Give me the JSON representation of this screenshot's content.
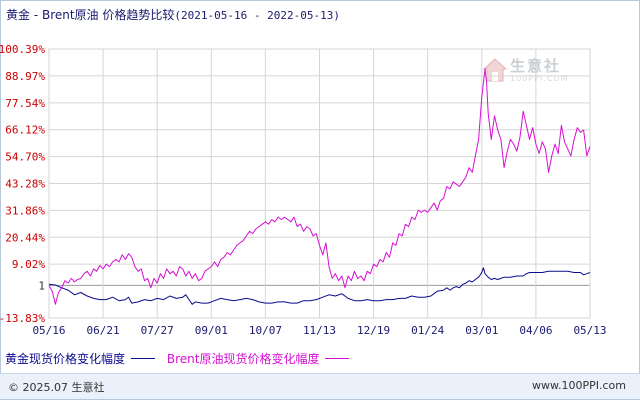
{
  "title": {
    "main": "黄金 - Brent原油 价格趋势比较",
    "range": "(2021-05-16 - 2022-05-13)"
  },
  "watermark": {
    "brand": "生意社",
    "url": "100PPI.COM"
  },
  "footer": {
    "copyright": "© 2025.07 生意社",
    "site": "www.100PPI.com"
  },
  "colors": {
    "gold": "#0b0b8f",
    "brent": "#d70fd3",
    "grid": "#d6d6d6",
    "axis_label": "#cc0000"
  },
  "chart_data": {
    "type": "line",
    "title": "黄金 - Brent原油 价格趋势比较",
    "ytick_labels": [
      "100.39%",
      "88.97%",
      "77.54%",
      "66.12%",
      "54.70%",
      "43.28%",
      "31.86%",
      "20.44%",
      "9.02%",
      "1",
      "-13.83%"
    ],
    "ytick_values": [
      100.39,
      88.97,
      77.54,
      66.12,
      54.7,
      43.28,
      31.86,
      20.44,
      9.02,
      0,
      -13.83
    ],
    "ylim": [
      -13.83,
      100.39
    ],
    "xtick_labels": [
      "05/16",
      "06/21",
      "07/27",
      "09/01",
      "10/07",
      "11/13",
      "12/19",
      "01/24",
      "03/01",
      "04/06",
      "05/13"
    ],
    "grid": true,
    "legend_position": "bottom",
    "series": [
      {
        "name": "黄金现货价格变化幅度",
        "color": "#0b0b8f",
        "points": [
          [
            0,
            0.5
          ],
          [
            4,
            0.2
          ],
          [
            8,
            -1
          ],
          [
            12,
            -2
          ],
          [
            16,
            -4
          ],
          [
            20,
            -3
          ],
          [
            24,
            -4.5
          ],
          [
            28,
            -5.5
          ],
          [
            32,
            -6
          ],
          [
            36,
            -6
          ],
          [
            40,
            -5
          ],
          [
            44,
            -6.5
          ],
          [
            48,
            -6
          ],
          [
            50,
            -5
          ],
          [
            52,
            -7.5
          ],
          [
            56,
            -7
          ],
          [
            60,
            -6
          ],
          [
            64,
            -6.5
          ],
          [
            68,
            -5.5
          ],
          [
            72,
            -6
          ],
          [
            76,
            -4.5
          ],
          [
            80,
            -5.5
          ],
          [
            84,
            -5
          ],
          [
            86,
            -4
          ],
          [
            88,
            -6
          ],
          [
            90,
            -8
          ],
          [
            92,
            -7
          ],
          [
            96,
            -7.5
          ],
          [
            100,
            -7.5
          ],
          [
            104,
            -6.5
          ],
          [
            108,
            -5.5
          ],
          [
            112,
            -6
          ],
          [
            116,
            -6.5
          ],
          [
            120,
            -6
          ],
          [
            124,
            -5.5
          ],
          [
            128,
            -6
          ],
          [
            132,
            -7
          ],
          [
            136,
            -7.5
          ],
          [
            140,
            -7.5
          ],
          [
            144,
            -7
          ],
          [
            148,
            -7
          ],
          [
            152,
            -7.5
          ],
          [
            156,
            -7.5
          ],
          [
            160,
            -6.5
          ],
          [
            164,
            -6.5
          ],
          [
            168,
            -6
          ],
          [
            172,
            -5
          ],
          [
            176,
            -4
          ],
          [
            180,
            -4.5
          ],
          [
            184,
            -3.5
          ],
          [
            188,
            -5.5
          ],
          [
            192,
            -6.5
          ],
          [
            196,
            -6.5
          ],
          [
            200,
            -6
          ],
          [
            204,
            -6.5
          ],
          [
            208,
            -6.5
          ],
          [
            212,
            -6
          ],
          [
            216,
            -6
          ],
          [
            220,
            -5.5
          ],
          [
            224,
            -5.5
          ],
          [
            228,
            -4.5
          ],
          [
            232,
            -5
          ],
          [
            236,
            -5
          ],
          [
            240,
            -4.5
          ],
          [
            244,
            -2.5
          ],
          [
            248,
            -2
          ],
          [
            250,
            -1
          ],
          [
            252,
            -2
          ],
          [
            254,
            -1
          ],
          [
            256,
            -0.5
          ],
          [
            258,
            -1
          ],
          [
            260,
            0.5
          ],
          [
            262,
            1
          ],
          [
            264,
            2
          ],
          [
            266,
            1.5
          ],
          [
            268,
            2.5
          ],
          [
            270,
            3.5
          ],
          [
            272,
            5.5
          ],
          [
            273,
            7.5
          ],
          [
            274,
            5
          ],
          [
            276,
            3.5
          ],
          [
            278,
            2.5
          ],
          [
            280,
            3
          ],
          [
            282,
            2.5
          ],
          [
            284,
            3
          ],
          [
            286,
            3.5
          ],
          [
            290,
            3.5
          ],
          [
            294,
            4
          ],
          [
            298,
            4
          ],
          [
            300,
            5
          ],
          [
            302,
            5.5
          ],
          [
            306,
            5.5
          ],
          [
            310,
            5.5
          ],
          [
            314,
            6
          ],
          [
            318,
            6
          ],
          [
            322,
            6
          ],
          [
            326,
            6
          ],
          [
            330,
            5.5
          ],
          [
            334,
            5.5
          ],
          [
            336,
            4.5
          ],
          [
            338,
            5
          ],
          [
            340,
            5.5
          ]
        ]
      },
      {
        "name": "Brent原油现货价格变化幅度",
        "color": "#d70fd3",
        "points": [
          [
            0,
            0
          ],
          [
            2,
            -2.5
          ],
          [
            4,
            -8
          ],
          [
            6,
            -3
          ],
          [
            8,
            -1
          ],
          [
            10,
            2
          ],
          [
            12,
            1
          ],
          [
            14,
            3
          ],
          [
            16,
            1.5
          ],
          [
            18,
            2.5
          ],
          [
            20,
            3
          ],
          [
            22,
            5
          ],
          [
            24,
            6
          ],
          [
            26,
            4
          ],
          [
            28,
            7
          ],
          [
            30,
            6
          ],
          [
            32,
            8.5
          ],
          [
            34,
            7
          ],
          [
            36,
            9
          ],
          [
            38,
            8
          ],
          [
            40,
            10
          ],
          [
            42,
            11
          ],
          [
            44,
            10
          ],
          [
            46,
            13
          ],
          [
            48,
            11
          ],
          [
            50,
            13.5
          ],
          [
            52,
            12
          ],
          [
            54,
            8
          ],
          [
            56,
            6
          ],
          [
            58,
            7
          ],
          [
            60,
            2
          ],
          [
            62,
            3
          ],
          [
            64,
            -1
          ],
          [
            66,
            3
          ],
          [
            68,
            1
          ],
          [
            70,
            5
          ],
          [
            72,
            3
          ],
          [
            74,
            7
          ],
          [
            76,
            5
          ],
          [
            78,
            6
          ],
          [
            80,
            4
          ],
          [
            82,
            8
          ],
          [
            84,
            7
          ],
          [
            86,
            4
          ],
          [
            88,
            6
          ],
          [
            90,
            3
          ],
          [
            92,
            5
          ],
          [
            94,
            2
          ],
          [
            96,
            3
          ],
          [
            98,
            6
          ],
          [
            100,
            7
          ],
          [
            102,
            8
          ],
          [
            104,
            10
          ],
          [
            106,
            8
          ],
          [
            108,
            11
          ],
          [
            110,
            12
          ],
          [
            112,
            14
          ],
          [
            114,
            13
          ],
          [
            116,
            15
          ],
          [
            118,
            17
          ],
          [
            120,
            18
          ],
          [
            122,
            19
          ],
          [
            124,
            21
          ],
          [
            126,
            23
          ],
          [
            128,
            22
          ],
          [
            130,
            24
          ],
          [
            132,
            25
          ],
          [
            134,
            26
          ],
          [
            136,
            27
          ],
          [
            138,
            26
          ],
          [
            140,
            28
          ],
          [
            142,
            27
          ],
          [
            144,
            29
          ],
          [
            146,
            28
          ],
          [
            148,
            29
          ],
          [
            150,
            28
          ],
          [
            152,
            27
          ],
          [
            154,
            29
          ],
          [
            156,
            25
          ],
          [
            158,
            26
          ],
          [
            160,
            23
          ],
          [
            162,
            25
          ],
          [
            164,
            24
          ],
          [
            166,
            21
          ],
          [
            168,
            22
          ],
          [
            170,
            17
          ],
          [
            172,
            13
          ],
          [
            174,
            18
          ],
          [
            176,
            8
          ],
          [
            178,
            3
          ],
          [
            180,
            5
          ],
          [
            182,
            2
          ],
          [
            184,
            4
          ],
          [
            186,
            -1
          ],
          [
            188,
            4
          ],
          [
            190,
            2
          ],
          [
            192,
            6
          ],
          [
            194,
            3
          ],
          [
            196,
            4
          ],
          [
            198,
            2
          ],
          [
            200,
            6
          ],
          [
            202,
            5
          ],
          [
            204,
            9
          ],
          [
            206,
            8
          ],
          [
            208,
            11
          ],
          [
            210,
            10
          ],
          [
            212,
            14
          ],
          [
            214,
            12
          ],
          [
            216,
            18
          ],
          [
            218,
            17
          ],
          [
            220,
            22
          ],
          [
            222,
            21
          ],
          [
            224,
            26
          ],
          [
            226,
            25
          ],
          [
            228,
            29
          ],
          [
            230,
            28
          ],
          [
            232,
            32
          ],
          [
            234,
            31
          ],
          [
            236,
            32
          ],
          [
            238,
            31
          ],
          [
            240,
            33
          ],
          [
            242,
            35
          ],
          [
            244,
            32
          ],
          [
            246,
            36
          ],
          [
            248,
            37
          ],
          [
            250,
            42
          ],
          [
            252,
            41
          ],
          [
            254,
            44
          ],
          [
            256,
            43
          ],
          [
            258,
            42
          ],
          [
            260,
            44
          ],
          [
            262,
            46
          ],
          [
            264,
            50
          ],
          [
            266,
            48
          ],
          [
            268,
            55
          ],
          [
            270,
            62
          ],
          [
            272,
            80
          ],
          [
            274,
            92
          ],
          [
            275,
            86
          ],
          [
            276,
            73
          ],
          [
            278,
            62
          ],
          [
            280,
            72
          ],
          [
            282,
            66
          ],
          [
            284,
            62
          ],
          [
            286,
            50
          ],
          [
            288,
            57
          ],
          [
            290,
            62
          ],
          [
            292,
            60
          ],
          [
            294,
            57
          ],
          [
            296,
            63
          ],
          [
            298,
            74
          ],
          [
            300,
            68
          ],
          [
            302,
            62
          ],
          [
            304,
            67
          ],
          [
            306,
            60
          ],
          [
            308,
            56
          ],
          [
            310,
            61
          ],
          [
            312,
            58
          ],
          [
            314,
            48
          ],
          [
            316,
            55
          ],
          [
            318,
            60
          ],
          [
            320,
            56
          ],
          [
            322,
            68
          ],
          [
            324,
            61
          ],
          [
            326,
            58
          ],
          [
            328,
            55
          ],
          [
            330,
            62
          ],
          [
            332,
            67
          ],
          [
            334,
            65
          ],
          [
            336,
            66
          ],
          [
            338,
            55
          ],
          [
            340,
            59
          ]
        ]
      }
    ]
  }
}
